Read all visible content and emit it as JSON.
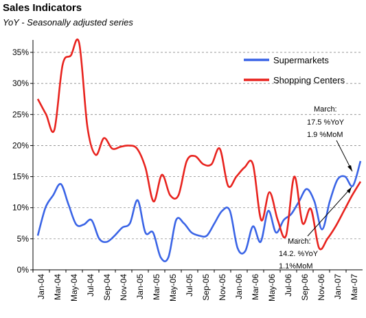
{
  "chart_data": {
    "type": "line",
    "title": "Sales Indicators",
    "subtitle": "YoY - Seasonally adjusted series",
    "xlabel": "",
    "ylabel": "",
    "ylim": [
      0,
      37
    ],
    "y_ticks": [
      "0%",
      "5%",
      "10%",
      "15%",
      "20%",
      "25%",
      "30%",
      "35%"
    ],
    "y_tick_values": [
      0,
      5,
      10,
      15,
      20,
      25,
      30,
      35
    ],
    "x_ticks": [
      "Jan-04",
      "Mar-04",
      "May-04",
      "Jul-04",
      "Sep-04",
      "Nov-04",
      "Jan-05",
      "Mar-05",
      "May-05",
      "Jul-05",
      "Sep-05",
      "Nov-05",
      "Jan-06",
      "Mar-06",
      "May-06",
      "Jul-06",
      "Sep-06",
      "Nov-06",
      "Jan-07",
      "Mar-07"
    ],
    "grid": "horizontal dashed",
    "legend_position": "top-right",
    "series": [
      {
        "name": "Supermarkets",
        "color": "#3a64e6",
        "values": [
          5.5,
          10,
          12,
          13.8,
          10.5,
          7.3,
          7.3,
          8,
          5,
          4.5,
          5.5,
          6.8,
          7.5,
          11.2,
          6,
          6,
          2,
          2,
          8,
          7.5,
          6,
          5.5,
          5.5,
          7.5,
          9.5,
          9.5,
          3.5,
          3,
          7,
          4.5,
          9.5,
          6,
          8,
          9,
          11,
          13,
          11,
          6.5,
          11,
          14.5,
          15,
          13.5,
          17.5
        ]
      },
      {
        "name": "Shopping Centers",
        "color": "#e8231e",
        "values": [
          27.5,
          25,
          22.5,
          33,
          34.5,
          36.5,
          23,
          18.5,
          21.2,
          19.5,
          19.8,
          20,
          19.5,
          16.5,
          11,
          15.3,
          12,
          12,
          17.5,
          18.3,
          17,
          17,
          19.5,
          13.5,
          15,
          16.5,
          17,
          8,
          12.5,
          8,
          5.5,
          15,
          7.5,
          9.8,
          3.5,
          5,
          7,
          9.5,
          12,
          14.2
        ]
      }
    ],
    "annotations": [
      {
        "lines": [
          "March:",
          "17.5 %YoY",
          "1.9 %MoM"
        ],
        "series": "Supermarkets"
      },
      {
        "lines": [
          "March:",
          "14.2. %YoY",
          "1.1%MoM"
        ],
        "series": "Shopping Centers"
      }
    ]
  }
}
